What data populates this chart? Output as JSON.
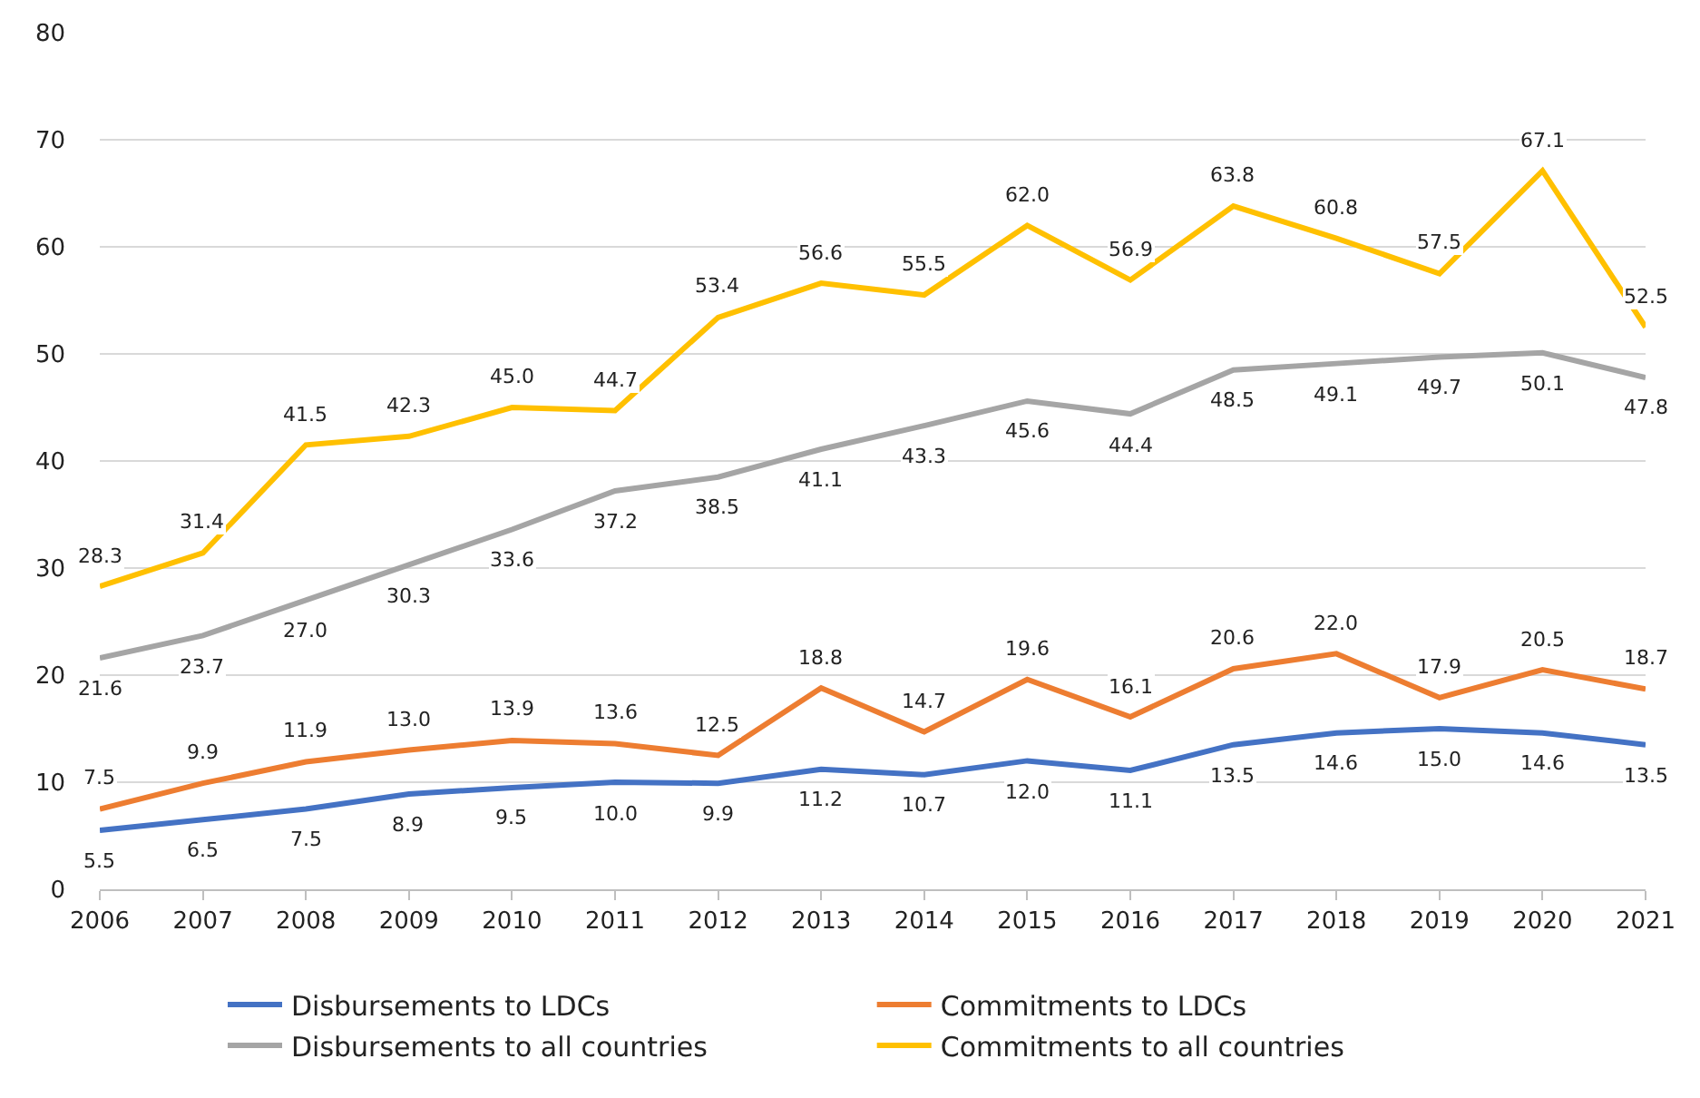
{
  "chart_data": {
    "type": "line",
    "categories": [
      "2006",
      "2007",
      "2008",
      "2009",
      "2010",
      "2011",
      "2012",
      "2013",
      "2014",
      "2015",
      "2016",
      "2017",
      "2018",
      "2019",
      "2020",
      "2021"
    ],
    "series": [
      {
        "name": "Disbursements to LDCs",
        "color": "#4472c4",
        "values": [
          5.5,
          6.5,
          7.5,
          8.9,
          9.5,
          10.0,
          9.9,
          11.2,
          10.7,
          12.0,
          11.1,
          13.5,
          14.6,
          15.0,
          14.6,
          13.5
        ],
        "value_labels": [
          "5.5",
          "6.5",
          "7.5",
          "8.9",
          "9.5",
          "10.0",
          "9.9",
          "11.2",
          "10.7",
          "12.0",
          "11.1",
          "13.5",
          "14.6",
          "15.0",
          "14.6",
          "13.5"
        ]
      },
      {
        "name": "Commitments to LDCs",
        "color": "#ed7d31",
        "values": [
          7.5,
          9.9,
          11.9,
          13.0,
          13.9,
          13.6,
          12.5,
          18.8,
          14.7,
          19.6,
          16.1,
          20.6,
          22.0,
          17.9,
          20.5,
          18.7
        ],
        "value_labels": [
          "7.5",
          "9.9",
          "11.9",
          "13.0",
          "13.9",
          "13.6",
          "12.5",
          "18.8",
          "14.7",
          "19.6",
          "16.1",
          "20.6",
          "22.0",
          "17.9",
          "20.5",
          "18.7"
        ]
      },
      {
        "name": "Disbursements to all countries",
        "color": "#a5a5a5",
        "values": [
          21.6,
          23.7,
          27.0,
          30.3,
          33.6,
          37.2,
          38.5,
          41.1,
          43.3,
          45.6,
          44.4,
          48.5,
          49.1,
          49.7,
          50.1,
          47.8
        ],
        "value_labels": [
          "21.6",
          "23.7",
          "27.0",
          "30.3",
          "33.6",
          "37.2",
          "38.5",
          "41.1",
          "43.3",
          "45.6",
          "44.4",
          "48.5",
          "49.1",
          "49.7",
          "50.1",
          "47.8"
        ]
      },
      {
        "name": "Commitments to all countries",
        "color": "#ffc000",
        "values": [
          28.3,
          31.4,
          41.5,
          42.3,
          45.0,
          44.7,
          53.4,
          56.6,
          55.5,
          62.0,
          56.9,
          63.8,
          60.8,
          57.5,
          67.1,
          52.5
        ],
        "value_labels": [
          "28.3",
          "31.4",
          "41.5",
          "42.3",
          "45.0",
          "44.7",
          "53.4",
          "56.6",
          "55.5",
          "62.0",
          "56.9",
          "63.8",
          "60.8",
          "57.5",
          "67.1",
          "52.5"
        ]
      }
    ],
    "ylim": [
      0,
      80
    ],
    "yticks": [
      0,
      10,
      20,
      30,
      40,
      50,
      60,
      70,
      80
    ],
    "grid": "y",
    "legend": "bottom",
    "marker": "none",
    "line_style": "solid"
  }
}
